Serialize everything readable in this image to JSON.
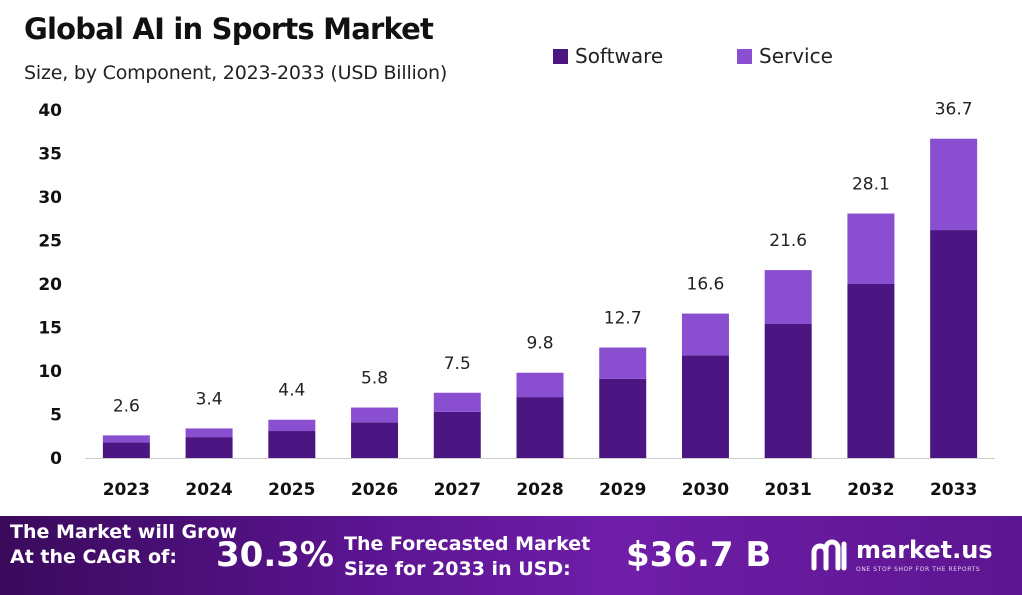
{
  "chart_data": {
    "type": "bar",
    "stacked": true,
    "title": "Global AI in Sports Market",
    "subtitle": "Size, by Component, 2023-2033 (USD Billion)",
    "categories": [
      "2023",
      "2024",
      "2025",
      "2026",
      "2027",
      "2028",
      "2029",
      "2030",
      "2031",
      "2032",
      "2033"
    ],
    "series": [
      {
        "name": "Software",
        "color": "#4b1682",
        "values": [
          1.8,
          2.4,
          3.1,
          4.1,
          5.3,
          7.0,
          9.1,
          11.8,
          15.4,
          20.0,
          26.2
        ]
      },
      {
        "name": "Service",
        "color": "#8a4fd0",
        "values": [
          0.8,
          1.0,
          1.3,
          1.7,
          2.2,
          2.8,
          3.6,
          4.8,
          6.2,
          8.1,
          10.5
        ]
      }
    ],
    "totals": [
      "2.6",
      "3.4",
      "4.4",
      "5.8",
      "7.5",
      "9.8",
      "12.7",
      "16.6",
      "21.6",
      "28.1",
      "36.7"
    ],
    "ylim": [
      0,
      40
    ],
    "yticks": [
      "0",
      "5",
      "10",
      "15",
      "20",
      "25",
      "30",
      "35",
      "40"
    ],
    "grid": false,
    "legend_position": "top-right"
  },
  "footer": {
    "cagr_text": "The Market will Grow\nAt the CAGR of:",
    "cagr_value": "30.3%",
    "forecast_text": "The Forecasted Market\nSize for 2033 in USD:",
    "forecast_value": "$36.7 B",
    "brand_name": "market.us",
    "brand_tagline": "ONE STOP SHOP FOR THE REPORTS"
  },
  "colors": {
    "software": "#4b1682",
    "service": "#8a4fd0",
    "footer_bg": "#5a1490"
  },
  "icons": {
    "brand_logo": "market-us-logo-icon"
  }
}
